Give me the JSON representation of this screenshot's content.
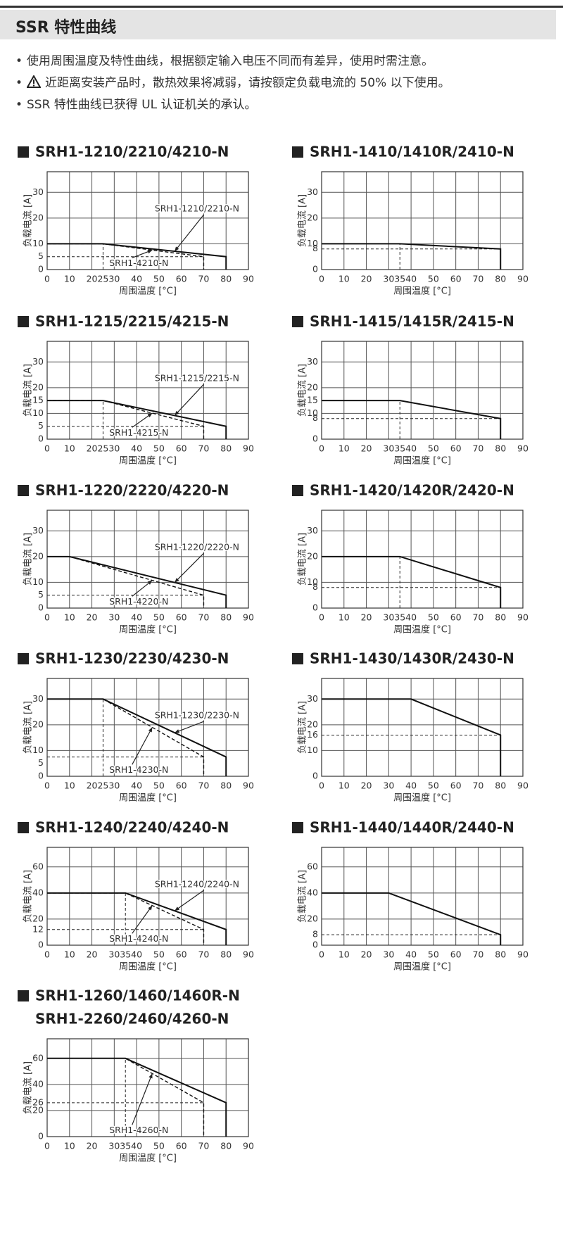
{
  "header": {
    "title": "SSR 特性曲线"
  },
  "notes": [
    "使用周围温度及特性曲线，根据额定输入电压不同而有差异，使用时需注意。",
    "近距离安装产品时，散热效果将减弱，请按额定负载电流的 50% 以下使用。",
    "SSR 特性曲线已获得 UL 认证机关的承认。"
  ],
  "chart_data": [
    {
      "type": "line",
      "title": "SRH1-1210/2210/4210-N",
      "x_label": "周围温度 [°C]",
      "y_label": "负载电流 [A]",
      "xlim": [
        0,
        90
      ],
      "ylim": [
        0,
        38
      ],
      "xticks": [
        0,
        10,
        20,
        25,
        30,
        40,
        50,
        60,
        70,
        80,
        90
      ],
      "yticks": [
        0,
        5,
        10,
        20,
        30
      ],
      "series": [
        {
          "name": "SRH1-1210/2210-N",
          "style": "solid",
          "color": "#111111",
          "x": [
            0,
            25,
            80,
            80
          ],
          "values": [
            10,
            10,
            5,
            0
          ]
        },
        {
          "name": "SRH1-4210-N",
          "style": "dashed",
          "color": "#111111",
          "x": [
            0,
            25,
            70,
            70
          ],
          "values": [
            10,
            10,
            5,
            0
          ]
        }
      ],
      "guides": [
        {
          "x": [
            25,
            25
          ],
          "values": [
            0,
            10
          ]
        },
        {
          "x": [
            0,
            70
          ],
          "values": [
            5,
            5
          ]
        }
      ]
    },
    {
      "type": "line",
      "title": "SRH1-1410/1410R/2410-N",
      "x_label": "周围温度 [°C]",
      "y_label": "负载电流 [A]",
      "xlim": [
        0,
        90
      ],
      "ylim": [
        0,
        38
      ],
      "xticks": [
        0,
        10,
        20,
        30,
        35,
        40,
        50,
        60,
        70,
        80,
        90
      ],
      "yticks": [
        0,
        8,
        10,
        20,
        30
      ],
      "series": [
        {
          "style": "solid",
          "color": "#111111",
          "x": [
            0,
            35,
            80,
            80
          ],
          "values": [
            10,
            10,
            8,
            0
          ]
        }
      ],
      "guides": [
        {
          "x": [
            35,
            35
          ],
          "values": [
            0,
            10
          ]
        },
        {
          "x": [
            0,
            80
          ],
          "values": [
            8,
            8
          ]
        }
      ]
    },
    {
      "type": "line",
      "title": "SRH1-1215/2215/4215-N",
      "x_label": "周围温度 [°C]",
      "y_label": "负载电流 [A]",
      "xlim": [
        0,
        90
      ],
      "ylim": [
        0,
        38
      ],
      "xticks": [
        0,
        10,
        20,
        25,
        30,
        40,
        50,
        60,
        70,
        80,
        90
      ],
      "yticks": [
        0,
        5,
        10,
        15,
        20,
        30
      ],
      "series": [
        {
          "name": "SRH1-1215/2215-N",
          "style": "solid",
          "color": "#111111",
          "x": [
            0,
            25,
            80,
            80
          ],
          "values": [
            15,
            15,
            5,
            0
          ]
        },
        {
          "name": "SRH1-4215-N",
          "style": "dashed",
          "color": "#111111",
          "x": [
            0,
            25,
            70,
            70
          ],
          "values": [
            15,
            15,
            5,
            0
          ]
        }
      ],
      "guides": [
        {
          "x": [
            25,
            25
          ],
          "values": [
            0,
            15
          ]
        },
        {
          "x": [
            0,
            70
          ],
          "values": [
            5,
            5
          ]
        }
      ]
    },
    {
      "type": "line",
      "title": "SRH1-1415/1415R/2415-N",
      "x_label": "周围温度 [°C]",
      "y_label": "负载电流 [A]",
      "xlim": [
        0,
        90
      ],
      "ylim": [
        0,
        38
      ],
      "xticks": [
        0,
        10,
        20,
        30,
        35,
        40,
        50,
        60,
        70,
        80,
        90
      ],
      "yticks": [
        0,
        8,
        10,
        15,
        20,
        30
      ],
      "series": [
        {
          "style": "solid",
          "color": "#111111",
          "x": [
            0,
            35,
            80,
            80
          ],
          "values": [
            15,
            15,
            8,
            0
          ]
        }
      ],
      "guides": [
        {
          "x": [
            35,
            35
          ],
          "values": [
            0,
            15
          ]
        },
        {
          "x": [
            0,
            80
          ],
          "values": [
            8,
            8
          ]
        }
      ]
    },
    {
      "type": "line",
      "title": "SRH1-1220/2220/4220-N",
      "x_label": "周围温度 [°C]",
      "y_label": "负载电流 [A]",
      "xlim": [
        0,
        90
      ],
      "ylim": [
        0,
        38
      ],
      "xticks": [
        0,
        10,
        20,
        30,
        40,
        50,
        60,
        70,
        80,
        90
      ],
      "yticks": [
        0,
        5,
        10,
        20,
        30
      ],
      "series": [
        {
          "name": "SRH1-1220/2220-N",
          "style": "solid",
          "color": "#111111",
          "x": [
            0,
            10,
            80,
            80
          ],
          "values": [
            20,
            20,
            5,
            0
          ]
        },
        {
          "name": "SRH1-4220-N",
          "style": "dashed",
          "color": "#111111",
          "x": [
            0,
            10,
            70,
            70
          ],
          "values": [
            20,
            20,
            5,
            0
          ]
        }
      ],
      "guides": [
        {
          "x": [
            0,
            70
          ],
          "values": [
            5,
            5
          ]
        }
      ]
    },
    {
      "type": "line",
      "title": "SRH1-1420/1420R/2420-N",
      "x_label": "周围温度 [°C]",
      "y_label": "负载电流 [A]",
      "xlim": [
        0,
        90
      ],
      "ylim": [
        0,
        38
      ],
      "xticks": [
        0,
        10,
        20,
        30,
        35,
        40,
        50,
        60,
        70,
        80,
        90
      ],
      "yticks": [
        0,
        8,
        10,
        20,
        30
      ],
      "series": [
        {
          "style": "solid",
          "color": "#111111",
          "x": [
            0,
            35,
            80,
            80
          ],
          "values": [
            20,
            20,
            8,
            0
          ]
        }
      ],
      "guides": [
        {
          "x": [
            35,
            35
          ],
          "values": [
            0,
            20
          ]
        },
        {
          "x": [
            0,
            80
          ],
          "values": [
            8,
            8
          ]
        }
      ]
    },
    {
      "type": "line",
      "title": "SRH1-1230/2230/4230-N",
      "x_label": "周围温度 [°C]",
      "y_label": "负载电流 [A]",
      "xlim": [
        0,
        90
      ],
      "ylim": [
        0,
        38
      ],
      "xticks": [
        0,
        10,
        20,
        25,
        30,
        40,
        50,
        60,
        70,
        80,
        90
      ],
      "yticks": [
        0,
        5,
        10,
        20,
        30
      ],
      "series": [
        {
          "name": "SRH1-1230/2230-N",
          "style": "solid",
          "color": "#111111",
          "x": [
            0,
            25,
            80,
            80
          ],
          "values": [
            30,
            30,
            7.5,
            0
          ]
        },
        {
          "name": "SRH1-4230-N",
          "style": "dashed",
          "color": "#111111",
          "x": [
            0,
            25,
            70,
            70
          ],
          "values": [
            30,
            30,
            7.5,
            0
          ]
        }
      ],
      "guides": [
        {
          "x": [
            25,
            25
          ],
          "values": [
            0,
            30
          ]
        },
        {
          "x": [
            0,
            70
          ],
          "values": [
            7.5,
            7.5
          ]
        }
      ]
    },
    {
      "type": "line",
      "title": "SRH1-1430/1430R/2430-N",
      "x_label": "周围温度 [°C]",
      "y_label": "负载电流 [A]",
      "xlim": [
        0,
        90
      ],
      "ylim": [
        0,
        38
      ],
      "xticks": [
        0,
        10,
        20,
        30,
        40,
        50,
        60,
        70,
        80,
        90
      ],
      "yticks": [
        0,
        10,
        16,
        20,
        30
      ],
      "series": [
        {
          "style": "solid",
          "color": "#111111",
          "x": [
            0,
            40,
            80,
            80
          ],
          "values": [
            30,
            30,
            16,
            0
          ]
        }
      ],
      "guides": [
        {
          "x": [
            0,
            80
          ],
          "values": [
            16,
            16
          ]
        }
      ]
    },
    {
      "type": "line",
      "title": "SRH1-1240/2240/4240-N",
      "x_label": "周围温度 [°C]",
      "y_label": "负载电流 [A]",
      "xlim": [
        0,
        90
      ],
      "ylim": [
        0,
        75
      ],
      "xticks": [
        0,
        10,
        20,
        30,
        35,
        40,
        50,
        60,
        70,
        80,
        90
      ],
      "yticks": [
        0,
        12,
        20,
        40,
        60
      ],
      "series": [
        {
          "name": "SRH1-1240/2240-N",
          "style": "solid",
          "color": "#111111",
          "x": [
            0,
            35,
            80,
            80
          ],
          "values": [
            40,
            40,
            12,
            0
          ]
        },
        {
          "name": "SRH1-4240-N",
          "style": "dashed",
          "color": "#111111",
          "x": [
            0,
            35,
            70,
            70
          ],
          "values": [
            40,
            40,
            12,
            0
          ]
        }
      ],
      "guides": [
        {
          "x": [
            35,
            35
          ],
          "values": [
            0,
            40
          ]
        },
        {
          "x": [
            0,
            70
          ],
          "values": [
            12,
            12
          ]
        }
      ]
    },
    {
      "type": "line",
      "title": "SRH1-1440/1440R/2440-N",
      "x_label": "周围温度 [°C]",
      "y_label": "负载电流 [A]",
      "xlim": [
        0,
        90
      ],
      "ylim": [
        0,
        75
      ],
      "xticks": [
        0,
        10,
        20,
        30,
        40,
        50,
        60,
        70,
        80,
        90
      ],
      "yticks": [
        0,
        8,
        20,
        40,
        60
      ],
      "series": [
        {
          "style": "solid",
          "color": "#111111",
          "x": [
            0,
            30,
            80,
            80
          ],
          "values": [
            40,
            40,
            8,
            0
          ]
        }
      ],
      "guides": [
        {
          "x": [
            0,
            80
          ],
          "values": [
            8,
            8
          ]
        }
      ]
    },
    {
      "type": "line",
      "title": [
        "SRH1-1260/1460/1460R-N",
        "SRH1-2260/2460/4260-N"
      ],
      "x_label": "周围温度 [°C]",
      "y_label": "负载电流 [A]",
      "xlim": [
        0,
        90
      ],
      "ylim": [
        0,
        75
      ],
      "xticks": [
        0,
        10,
        20,
        30,
        35,
        40,
        50,
        60,
        70,
        80,
        90
      ],
      "yticks": [
        0,
        20,
        26,
        40,
        60
      ],
      "series": [
        {
          "style": "solid",
          "color": "#111111",
          "x": [
            0,
            35,
            80,
            80
          ],
          "values": [
            60,
            60,
            26,
            0
          ]
        },
        {
          "name": "SRH1-4260-N",
          "style": "dashed",
          "color": "#111111",
          "x": [
            0,
            35,
            70,
            70
          ],
          "values": [
            60,
            60,
            26,
            0
          ]
        }
      ],
      "guides": [
        {
          "x": [
            35,
            35
          ],
          "values": [
            0,
            60
          ]
        },
        {
          "x": [
            0,
            70
          ],
          "values": [
            26,
            26
          ]
        }
      ]
    }
  ]
}
